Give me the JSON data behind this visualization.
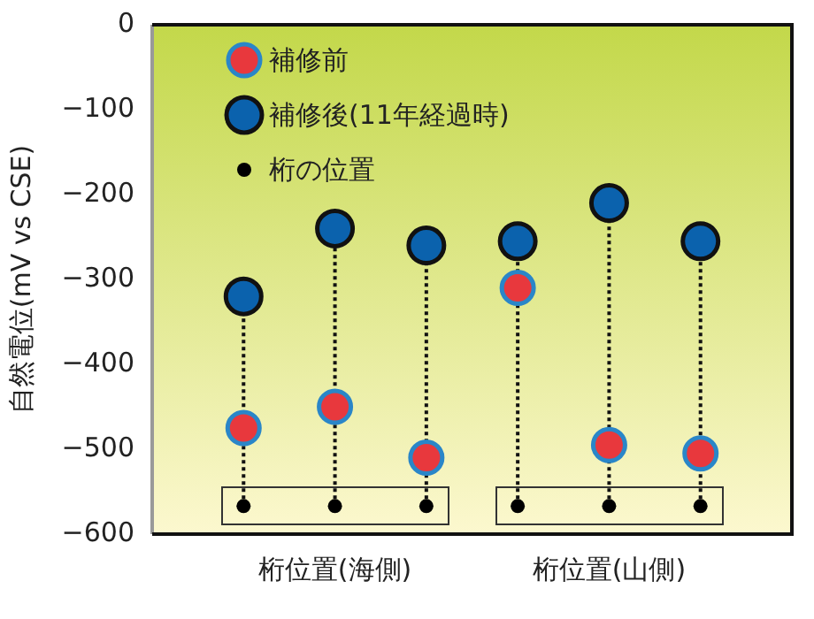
{
  "chart_data": {
    "type": "scatter",
    "ylabel": "自然電位(mV vs CSE)",
    "categories": [
      null,
      "桁位置(海側)",
      null,
      null,
      "桁位置(山側)",
      null
    ],
    "ylim": [
      -600,
      0
    ],
    "yticks": [
      {
        "value": 0,
        "label": "0"
      },
      {
        "value": -100,
        "label": "−100"
      },
      {
        "value": -200,
        "label": "−200"
      },
      {
        "value": -300,
        "label": "−300"
      },
      {
        "value": -400,
        "label": "−400"
      },
      {
        "value": -500,
        "label": "−500"
      },
      {
        "value": -600,
        "label": "−600"
      }
    ],
    "grid": false,
    "legend": "top left",
    "marker": "circle",
    "series": [
      {
        "name": "補修前",
        "color": "#e8383d",
        "values": [
          -475,
          -450,
          -510,
          -310,
          -495,
          -505
        ]
      },
      {
        "name": "補修後(11年経過時)",
        "color": "#0b62ad",
        "values": [
          -320,
          -240,
          -260,
          -255,
          -210,
          -255
        ]
      },
      {
        "name": "桁の位置",
        "color": "#000000",
        "values": [
          -567,
          -567,
          -567,
          -567,
          -567,
          -567
        ]
      }
    ]
  }
}
